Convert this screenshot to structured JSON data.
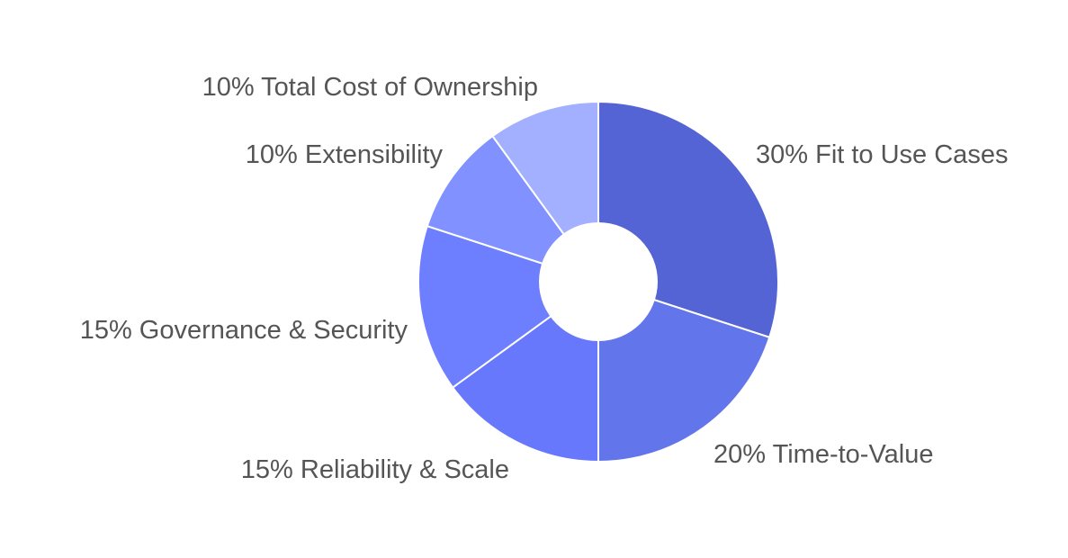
{
  "chart_data": {
    "type": "pie",
    "variant": "donut",
    "title": "",
    "categories": [
      "Fit to Use Cases",
      "Time-to-Value",
      "Reliability & Scale",
      "Governance & Security",
      "Extensibility",
      "Total Cost of Ownership"
    ],
    "values": [
      30,
      20,
      15,
      15,
      10,
      10
    ],
    "unit": "%",
    "labels": [
      "30% Fit to Use Cases",
      "20% Time-to-Value",
      "15% Reliability & Scale",
      "15% Governance & Security",
      "10% Extensibility",
      "10% Total Cost of Ownership"
    ],
    "colors": [
      "#5464d4",
      "#6375ea",
      "#6878fd",
      "#6d7eff",
      "#8191ff",
      "#a2b0ff"
    ],
    "start_angle_deg": 0,
    "direction": "clockwise",
    "hole_ratio": 0.33,
    "legend": "none",
    "label_position": "outside"
  }
}
